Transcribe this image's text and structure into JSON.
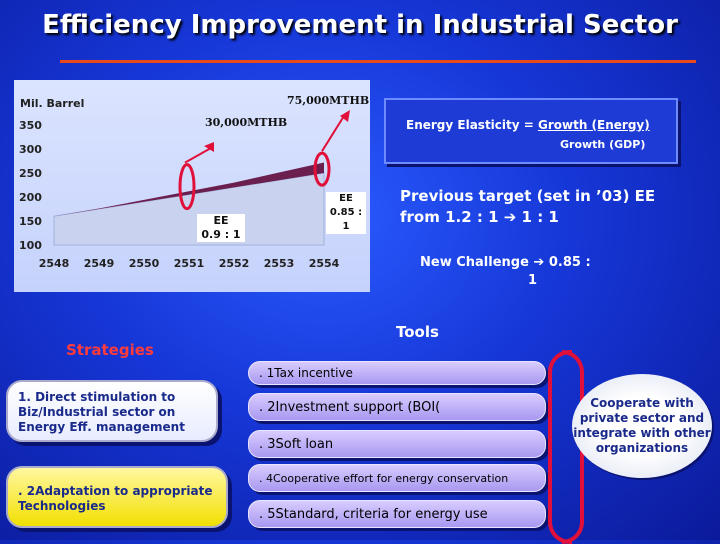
{
  "title": "Efficiency Improvement in Industrial Sector",
  "chart": {
    "ylabel": "Mil. Barrel",
    "yticks": [
      "350",
      "300",
      "250",
      "200",
      "150",
      "100"
    ],
    "xticks": [
      "2548",
      "2549",
      "2550",
      "2551",
      "2552",
      "2553",
      "2554"
    ],
    "ann_30000": "30,000MTHB",
    "ann_75000": "75,000MTHB",
    "ee_left_1": "EE",
    "ee_left_2": "0.9 : 1",
    "ee_right_1": "EE",
    "ee_right_2": "0.85 :",
    "ee_right_3": "1",
    "colors": {
      "fill": "#6b1f4e",
      "base": "#c9d2ee",
      "line": "#a4b0dd",
      "arrow": "#e0103a"
    }
  },
  "chart_data": {
    "type": "area",
    "x": [
      "2548",
      "2549",
      "2550",
      "2551",
      "2552",
      "2553",
      "2554"
    ],
    "series": [
      {
        "values": [
          160,
          175,
          190,
          205,
          220,
          235,
          250
        ]
      },
      {
        "values": [
          160,
          176,
          194,
          212,
          230,
          251,
          272
        ]
      }
    ],
    "ylabel": "Mil. Barrel",
    "ylim": [
      100,
      350
    ]
  },
  "elasticity": {
    "prefix": "Energy Elasticity = ",
    "numerator": "Growth (Energy)",
    "denominator": "Growth (GDP)"
  },
  "previous_target": {
    "line1": "Previous target (set in ’03) EE",
    "line2": "from 1.2 : 1  ➔ 1 : 1"
  },
  "new_challenge": {
    "line1": "New Challenge  ➔  0.85 :",
    "line2": "1"
  },
  "tools_title": "Tools",
  "strategies_title": "Strategies",
  "tools": [
    ". 1Tax incentive",
    ". 2Investment support (BOI(",
    ". 3Soft loan",
    ". 4Cooperative effort for energy conservation",
    ". 5Standard, criteria for energy use"
  ],
  "strategies": [
    "1.  Direct stimulation to Biz/Industrial sector on Energy Eff. management",
    ". 2Adaptation to appropriate Technologies"
  ],
  "cooperate": "Cooperate with private sector and integrate with other organizations"
}
